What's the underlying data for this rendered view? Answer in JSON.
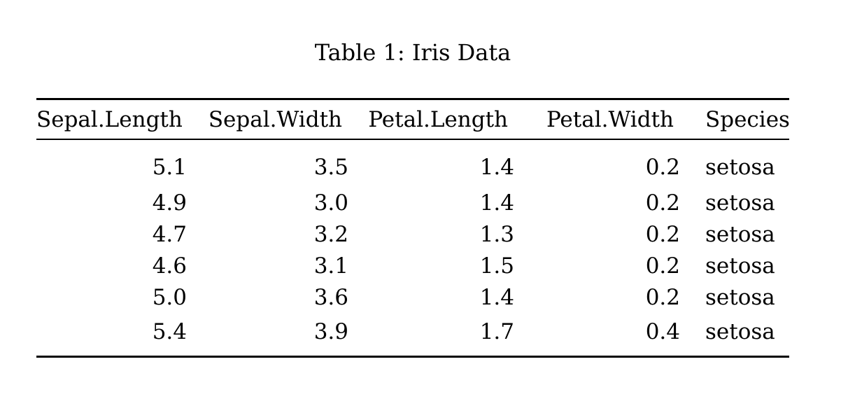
{
  "document": {
    "background_color": "#ffffff",
    "text_color": "#000000"
  },
  "table": {
    "caption": "Table 1: Iris Data",
    "columns": [
      {
        "label": "Sepal.Length",
        "align": "right"
      },
      {
        "label": "Sepal.Width",
        "align": "right"
      },
      {
        "label": "Petal.Length",
        "align": "right"
      },
      {
        "label": "Petal.Width",
        "align": "right"
      },
      {
        "label": "Species",
        "align": "left"
      }
    ],
    "rows": [
      [
        "5.1",
        "3.5",
        "1.4",
        "0.2",
        "setosa"
      ],
      [
        "4.9",
        "3.0",
        "1.4",
        "0.2",
        "setosa"
      ],
      [
        "4.7",
        "3.2",
        "1.3",
        "0.2",
        "setosa"
      ],
      [
        "4.6",
        "3.1",
        "1.5",
        "0.2",
        "setosa"
      ],
      [
        "5.0",
        "3.6",
        "1.4",
        "0.2",
        "setosa"
      ],
      [
        "5.4",
        "3.9",
        "1.7",
        "0.4",
        "setosa"
      ]
    ]
  },
  "chart_data": {
    "type": "table",
    "title": "Table 1: Iris Data",
    "columns": [
      "Sepal.Length",
      "Sepal.Width",
      "Petal.Length",
      "Petal.Width",
      "Species"
    ],
    "rows": [
      [
        5.1,
        3.5,
        1.4,
        0.2,
        "setosa"
      ],
      [
        4.9,
        3.0,
        1.4,
        0.2,
        "setosa"
      ],
      [
        4.7,
        3.2,
        1.3,
        0.2,
        "setosa"
      ],
      [
        4.6,
        3.1,
        1.5,
        0.2,
        "setosa"
      ],
      [
        5.0,
        3.6,
        1.4,
        0.2,
        "setosa"
      ],
      [
        5.4,
        3.9,
        1.7,
        0.4,
        "setosa"
      ]
    ]
  }
}
